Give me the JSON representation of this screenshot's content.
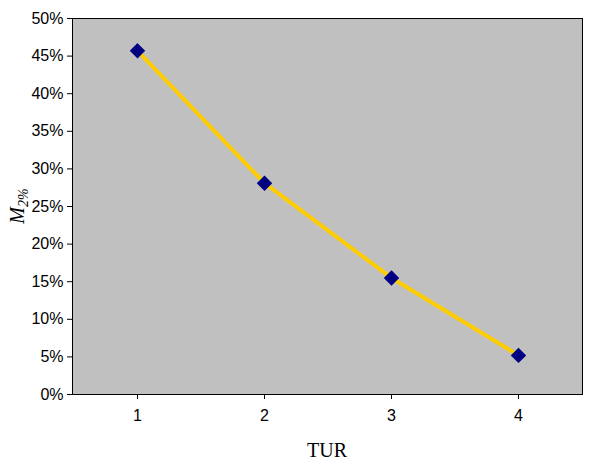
{
  "chart_data": {
    "type": "line",
    "x_label": "TUR",
    "y_label": "M2%",
    "categories": [
      "1",
      "2",
      "3",
      "4"
    ],
    "values": [
      45.7,
      28.1,
      15.5,
      5.2
    ],
    "color": "#ffcc00",
    "marker": "diamond",
    "ylim": [
      0,
      50
    ],
    "yticks": [
      {
        "value": 0,
        "label": "0%"
      },
      {
        "value": 5,
        "label": "5%"
      },
      {
        "value": 10,
        "label": "10%"
      },
      {
        "value": 15,
        "label": "15%"
      },
      {
        "value": 20,
        "label": "20%"
      },
      {
        "value": 25,
        "label": "25%"
      },
      {
        "value": 30,
        "label": "30%"
      },
      {
        "value": 35,
        "label": "35%"
      },
      {
        "value": 40,
        "label": "40%"
      },
      {
        "value": 45,
        "label": "45%"
      },
      {
        "value": 50,
        "label": "50%"
      }
    ],
    "grid": false
  }
}
